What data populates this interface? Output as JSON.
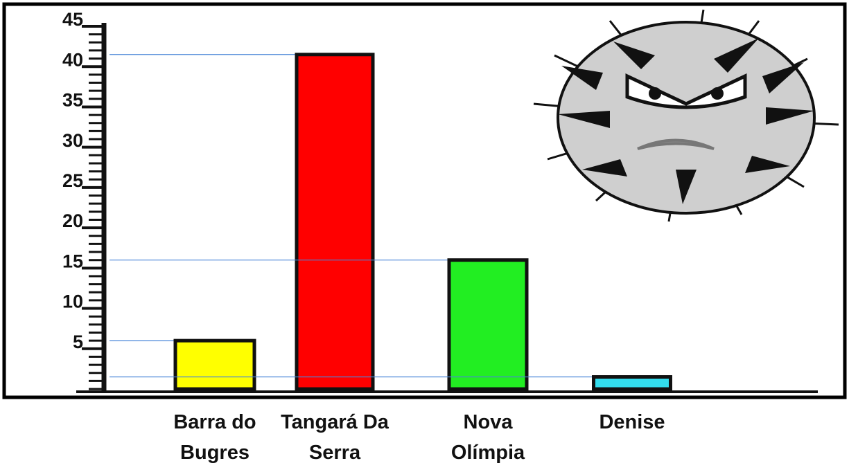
{
  "chart_data": {
    "type": "bar",
    "categories": [
      "Barra do Bugres",
      "Tangará Da Serra",
      "Nova Olímpia",
      "Denise"
    ],
    "values": [
      6,
      41.5,
      16,
      1.5
    ],
    "colors": [
      "#ffff00",
      "#ff0000",
      "#22ee22",
      "#33ddee"
    ],
    "ylim": [
      0,
      45
    ],
    "yticks": [
      5,
      10,
      15,
      20,
      25,
      30,
      35,
      40,
      45
    ],
    "reference_lines": true
  }
}
